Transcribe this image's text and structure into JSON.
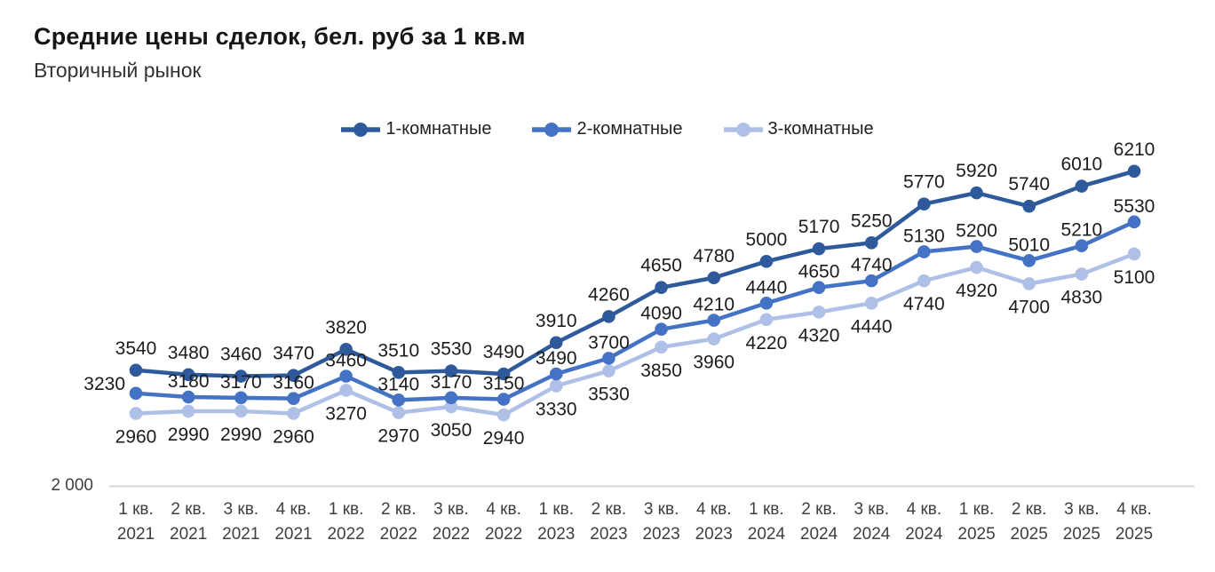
{
  "header": {
    "title": "Средние цены сделок, бел. руб за 1 кв.м",
    "subtitle": "Вторичный рынок"
  },
  "chart_data": {
    "type": "line",
    "title": "Средние цены сделок, бел. руб за 1 кв.м",
    "subtitle": "Вторичный рынок",
    "categories": [
      "1 кв. 2021",
      "2 кв. 2021",
      "3 кв. 2021",
      "4 кв. 2021",
      "1 кв. 2022",
      "2 кв. 2022",
      "3 кв. 2022",
      "4 кв. 2022",
      "1 кв. 2023",
      "2 кв. 2023",
      "3 кв. 2023",
      "4 кв. 2023",
      "1 кв. 2024",
      "2 кв. 2024",
      "3 кв. 2024",
      "4 кв. 2024",
      "1 кв. 2025",
      "2 кв. 2025",
      "3 кв. 2025",
      "4 кв. 2025"
    ],
    "series": [
      {
        "name": "1-комнатные",
        "color": "#2e5a9c",
        "values": [
          3540,
          3480,
          3460,
          3470,
          3820,
          3510,
          3530,
          3490,
          3910,
          4260,
          4650,
          4780,
          5000,
          5170,
          5250,
          5770,
          5920,
          5740,
          6010,
          6210
        ]
      },
      {
        "name": "2-комнатные",
        "color": "#4472c4",
        "values": [
          3230,
          3180,
          3170,
          3160,
          3460,
          3140,
          3170,
          3150,
          3490,
          3700,
          4090,
          4210,
          4440,
          4650,
          4740,
          5130,
          5200,
          5010,
          5210,
          5530
        ]
      },
      {
        "name": "3-комнатные",
        "color": "#afc0e6",
        "values": [
          2960,
          2990,
          2990,
          2960,
          3270,
          2970,
          3050,
          2940,
          3330,
          3530,
          3850,
          3960,
          4220,
          4320,
          4440,
          4740,
          4920,
          4700,
          4830,
          5100
        ]
      }
    ],
    "y_axis": {
      "tick_label": "2 000",
      "min": 2000
    },
    "legend_position": "top-center",
    "grid": false,
    "data_labels": true,
    "axis_line_color": "#d9d9d9"
  }
}
